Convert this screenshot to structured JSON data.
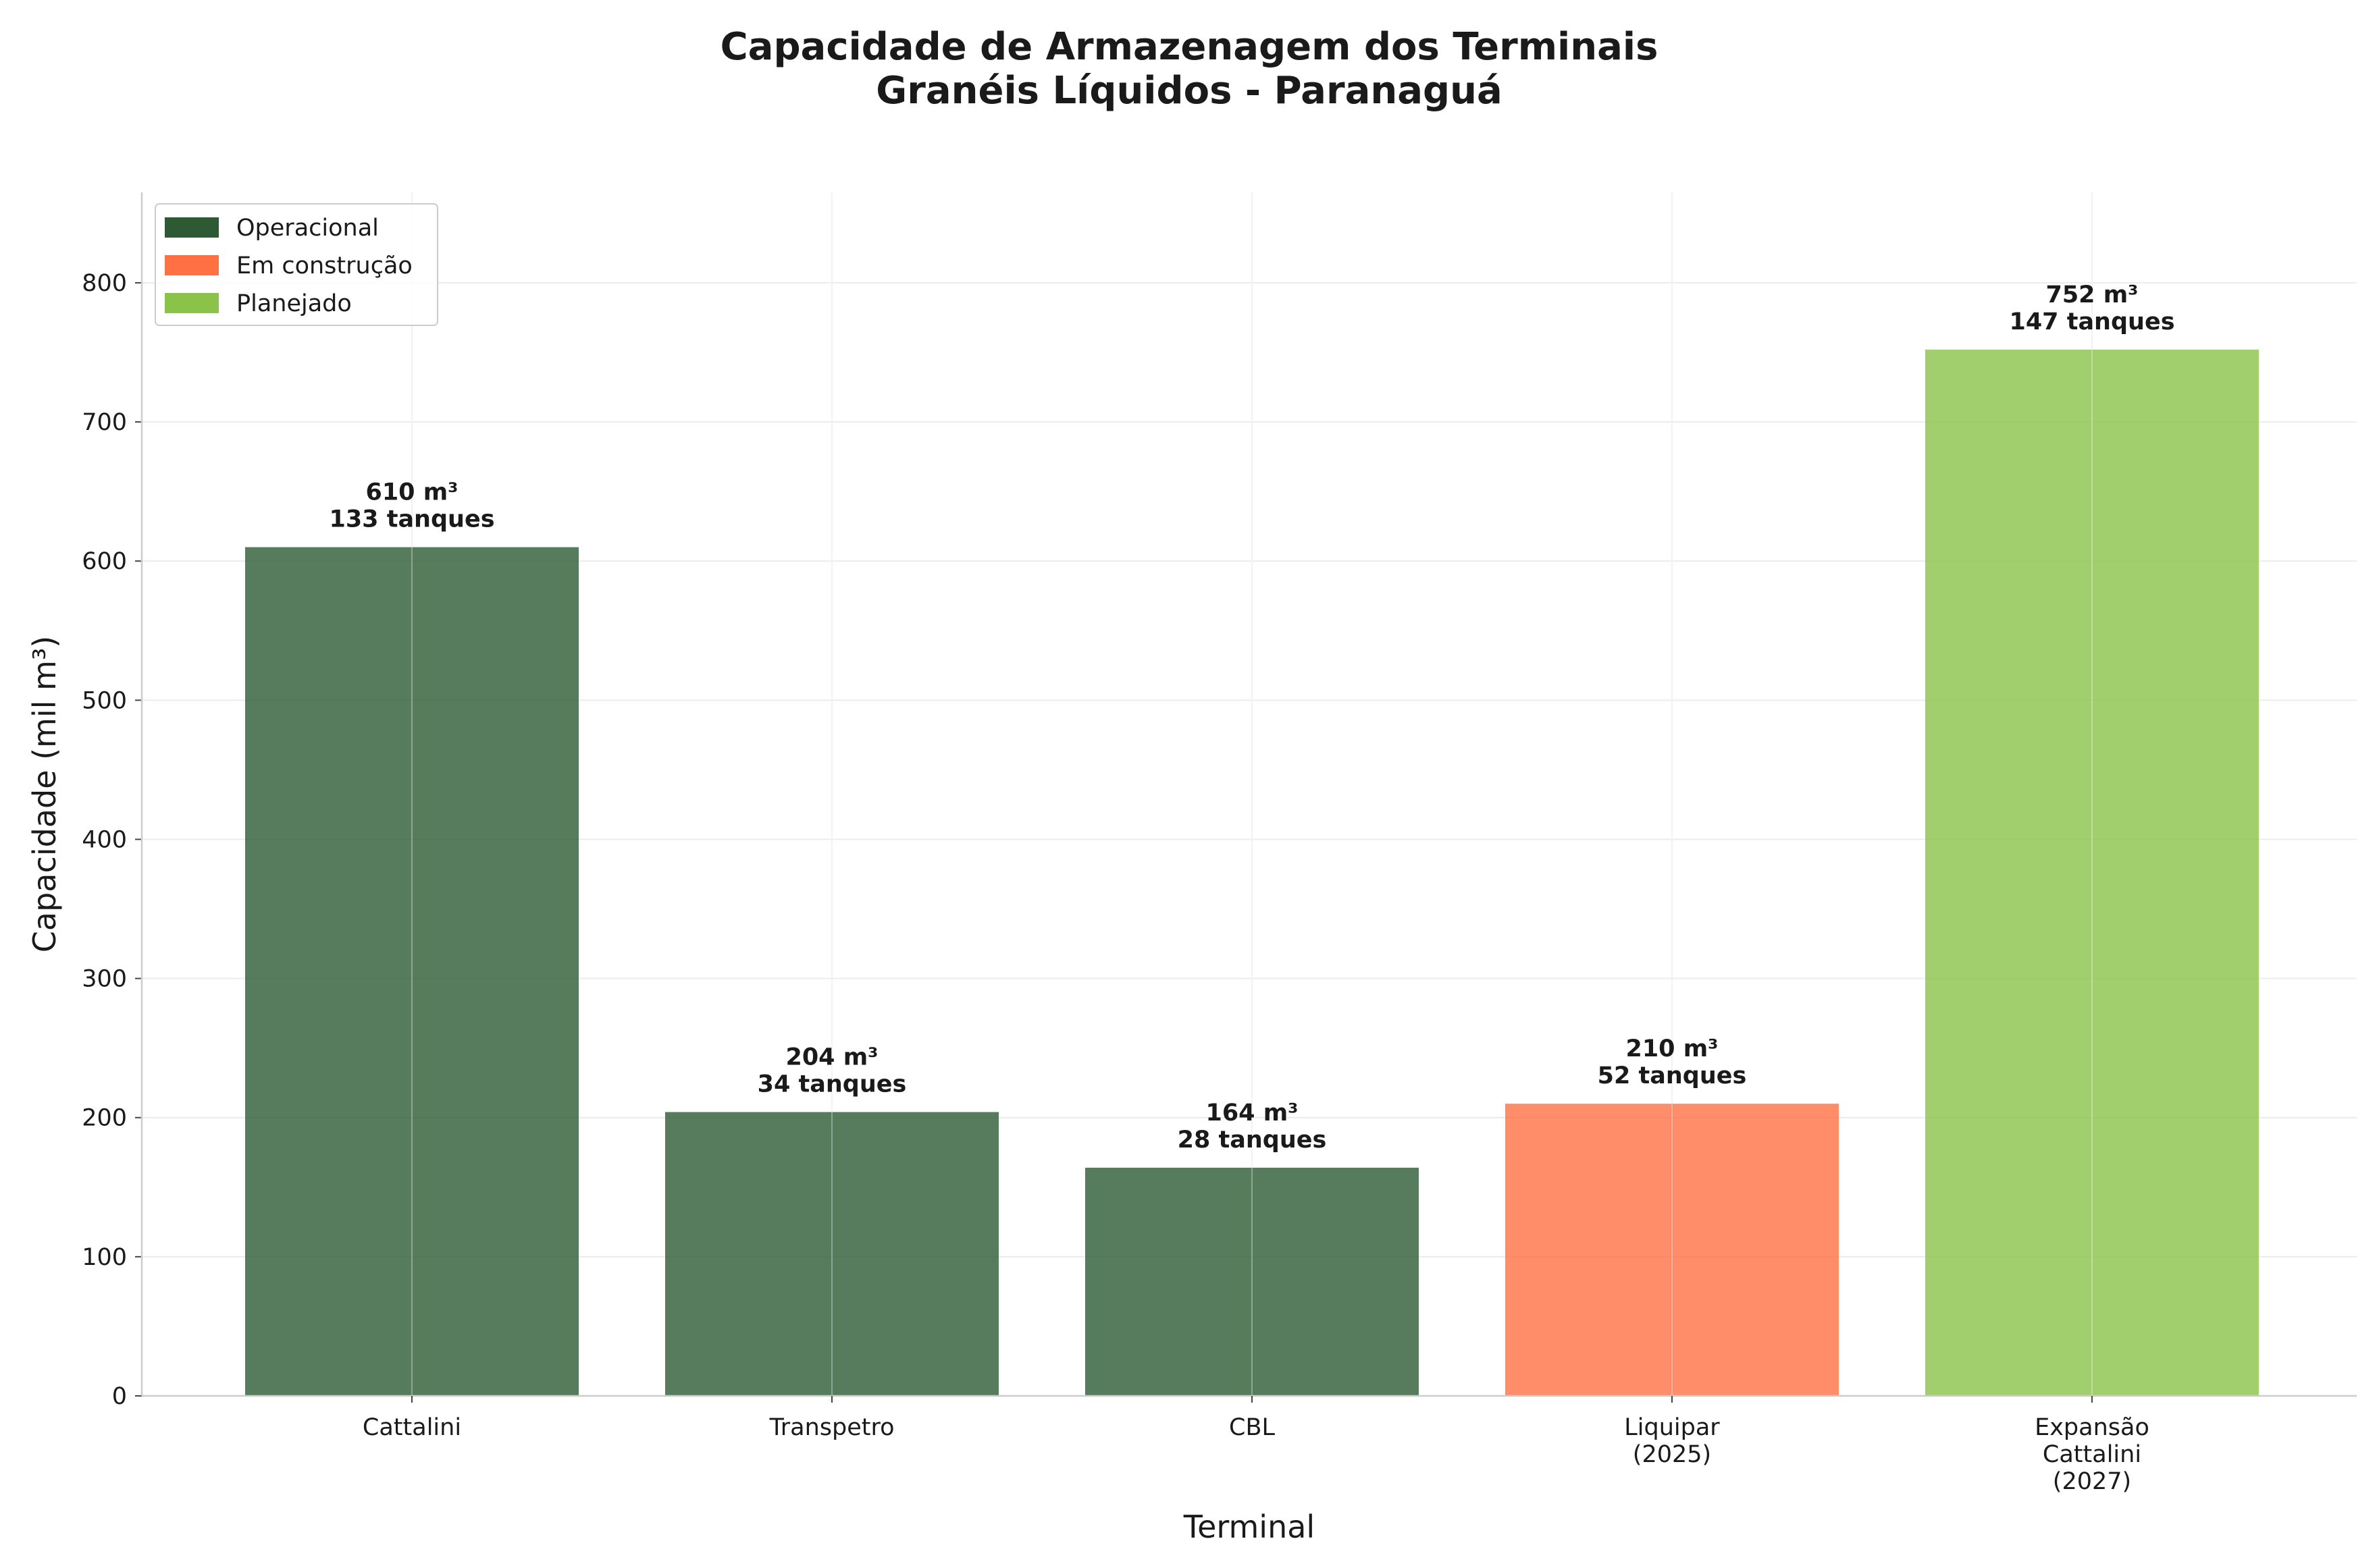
{
  "chart_data": {
    "type": "bar",
    "title": "Capacidade de Armazenagem dos Terminais\nGranéis Líquidos - Paranaguá",
    "xlabel": "Terminal",
    "ylabel": "Capacidade (mil m³)",
    "ylim": [
      0,
      865
    ],
    "yticks": [
      0,
      100,
      200,
      300,
      400,
      500,
      600,
      700,
      800
    ],
    "grid": true,
    "legend_position": "top-left",
    "status_colors": {
      "Operacional": "#2d5a35",
      "Em construção": "#ff7043",
      "Planejado": "#8bc34a"
    },
    "legend": [
      {
        "label": "Operacional",
        "color": "#2d5a35"
      },
      {
        "label": "Em construção",
        "color": "#ff7043"
      },
      {
        "label": "Planejado",
        "color": "#8bc34a"
      }
    ],
    "categories": [
      "Cattalini",
      "Transpetro",
      "CBL",
      "Liquipar\n(2025)",
      "Expansão\nCattalini\n(2027)"
    ],
    "bars": [
      {
        "category": "Cattalini",
        "value": 610,
        "tanks": 133,
        "status": "Operacional",
        "label_value": "610 m³",
        "label_tanks": "133 tanques"
      },
      {
        "category": "Transpetro",
        "value": 204,
        "tanks": 34,
        "status": "Operacional",
        "label_value": "204 m³",
        "label_tanks": "34 tanques"
      },
      {
        "category": "CBL",
        "value": 164,
        "tanks": 28,
        "status": "Operacional",
        "label_value": "164 m³",
        "label_tanks": "28 tanques"
      },
      {
        "category": "Liquipar (2025)",
        "value": 210,
        "tanks": 52,
        "status": "Em construção",
        "label_value": "210 m³",
        "label_tanks": "52 tanques"
      },
      {
        "category": "Expansão Cattalini (2027)",
        "value": 752,
        "tanks": 147,
        "status": "Planejado",
        "label_value": "752 m³",
        "label_tanks": "147 tanques"
      }
    ]
  }
}
